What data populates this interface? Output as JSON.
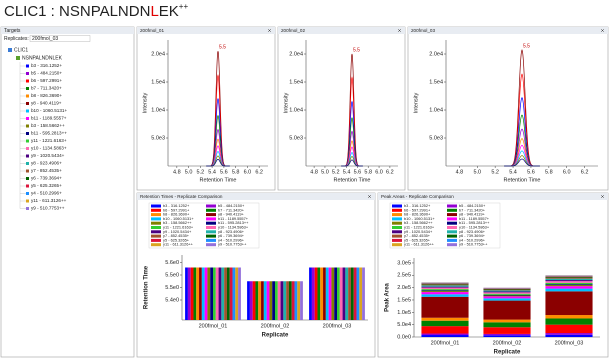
{
  "header": {
    "prefix": "CLIC1 : NSNPALNDN",
    "highlight": "L",
    "suffix": "EK",
    "charge": "++"
  },
  "targets": {
    "title": "Targets",
    "replicate_label": "Replicates:",
    "replicate": "200fmol_03",
    "protein": "CLIC1",
    "peptide": "NSNPALNDNLEK"
  },
  "chart_data": [
    {
      "type": "chromatogram",
      "title": "200fmol_01",
      "x_label": "Retention Time",
      "y_label": "Intensity",
      "apex_rt": 5.5,
      "xlim": [
        4.65,
        6.35
      ],
      "xticks": [
        4.8,
        {
          "value": 5,
          "label": "5.0"
        },
        5.2,
        5.4,
        5.6,
        5.8,
        {
          "value": 6,
          "label": "6.0"
        },
        6.2
      ],
      "ylim": [
        0,
        22500
      ],
      "yticks": [
        {
          "value": 5000,
          "label": "5.0e3"
        },
        {
          "value": 10000,
          "label": "1.0e4"
        },
        {
          "value": 15000,
          "label": "1.5e4"
        },
        {
          "value": 20000,
          "label": "2.0e4"
        }
      ],
      "heights": [
        20500,
        16200,
        12000,
        9000,
        6500,
        4800,
        3600,
        2600,
        1800,
        1200
      ],
      "colors": [
        "#8b0000",
        "#ff0000",
        "#0000ff",
        "#008000",
        "#9400d3",
        "#ff8c00",
        "#ff00ff",
        "#00bfff",
        "#808000",
        "#000080"
      ]
    },
    {
      "type": "chromatogram",
      "title": "200fmol_02",
      "x_label": "Retention Time",
      "y_label": "Intensity",
      "apex_rt": 5.5,
      "xlim": [
        4.65,
        6.35
      ],
      "xticks": [
        4.8,
        {
          "value": 5,
          "label": "5.0"
        },
        5.2,
        5.4,
        5.6,
        5.8,
        {
          "value": 6,
          "label": "6.0"
        },
        6.2
      ],
      "ylim": [
        0,
        22500
      ],
      "yticks": [
        {
          "value": 5000,
          "label": "5.0e3"
        },
        {
          "value": 10000,
          "label": "1.0e4"
        },
        {
          "value": 15000,
          "label": "1.5e4"
        },
        {
          "value": 20000,
          "label": "2.0e4"
        }
      ],
      "heights": [
        20000,
        15800,
        11500,
        8600,
        6200,
        4500,
        3400,
        2400,
        1700,
        1100
      ],
      "colors": [
        "#8b0000",
        "#ff0000",
        "#0000ff",
        "#008000",
        "#9400d3",
        "#ff8c00",
        "#ff00ff",
        "#00bfff",
        "#808000",
        "#000080"
      ]
    },
    {
      "type": "chromatogram",
      "title": "200fmol_03",
      "x_label": "Retention Time",
      "y_label": "Intensity",
      "apex_rt": 5.5,
      "xlim": [
        4.65,
        6.35
      ],
      "xticks": [
        4.8,
        {
          "value": 5,
          "label": "5.0"
        },
        5.2,
        5.4,
        5.6,
        5.8,
        {
          "value": 6,
          "label": "6.0"
        },
        6.2
      ],
      "ylim": [
        0,
        22500
      ],
      "yticks": [
        {
          "value": 5000,
          "label": "5.0e3"
        },
        {
          "value": 10000,
          "label": "1.0e4"
        },
        {
          "value": 15000,
          "label": "1.5e4"
        },
        {
          "value": 20000,
          "label": "2.0e4"
        }
      ],
      "heights": [
        20700,
        16400,
        12200,
        9100,
        6600,
        4900,
        3700,
        2700,
        1850,
        1250
      ],
      "colors": [
        "#8b0000",
        "#ff0000",
        "#0000ff",
        "#008000",
        "#9400d3",
        "#ff8c00",
        "#ff00ff",
        "#00bfff",
        "#808000",
        "#000080"
      ]
    },
    {
      "type": "grouped",
      "title": "Retention Times - Replicate Comparison",
      "x_label": "Replicate",
      "y_label": "Retention Time",
      "categories": [
        "200fmol_01",
        "200fmol_02",
        "200fmol_03"
      ],
      "ylim": [
        5.32,
        5.58
      ],
      "yticks": [
        {
          "value": 5.4,
          "label": "5.4e0"
        },
        {
          "value": 5.45,
          "label": "5.5e0"
        },
        {
          "value": 5.5,
          "label": "5.5e0"
        },
        {
          "value": 5.55,
          "label": "5.6e0"
        }
      ],
      "series": [
        {
          "name": "b3 - 316.1252+",
          "color": "#0000ff",
          "values": [
            5.53,
            5.475,
            5.53
          ]
        },
        {
          "name": "b5 - 484.2150+",
          "color": "#9400d3",
          "values": [
            5.53,
            5.475,
            5.53
          ]
        },
        {
          "name": "b6 - 597.2991+",
          "color": "#ff0000",
          "values": [
            5.53,
            5.475,
            5.53
          ]
        },
        {
          "name": "b7 - 711.3420+",
          "color": "#008000",
          "values": [
            5.53,
            5.475,
            5.53
          ]
        },
        {
          "name": "b8 - 826.3690+",
          "color": "#ff8c00",
          "values": [
            5.53,
            5.475,
            5.53
          ]
        },
        {
          "name": "y8 - 940.4119+",
          "color": "#8b0000",
          "values": [
            5.53,
            5.475,
            5.53
          ]
        },
        {
          "name": "b10 - 1060.5131+",
          "color": "#00bfff",
          "values": [
            5.53,
            5.475,
            5.53
          ]
        },
        {
          "name": "b11 - 1189.5557+",
          "color": "#ff00ff",
          "values": [
            5.53,
            5.475,
            5.53
          ]
        },
        {
          "name": "b3 - 158.5662++",
          "color": "#808000",
          "values": [
            5.53,
            5.475,
            5.53
          ]
        },
        {
          "name": "b11 - 595.2813++",
          "color": "#000080",
          "values": [
            5.53,
            5.475,
            5.53
          ]
        },
        {
          "name": "y11 - 1221.6163+",
          "color": "#32cd32",
          "values": [
            5.53,
            5.475,
            5.53
          ]
        },
        {
          "name": "y10 - 1134.5863+",
          "color": "#ff69b4",
          "values": [
            5.53,
            5.475,
            5.53
          ]
        },
        {
          "name": "y9 - 1020.5434+",
          "color": "#4b0082",
          "values": [
            5.53,
            5.475,
            5.53
          ]
        },
        {
          "name": "y8 - 923.4906+",
          "color": "#20b2aa",
          "values": [
            5.53,
            5.475,
            5.53
          ]
        },
        {
          "name": "y7 - 852.4535+",
          "color": "#a0522d",
          "values": [
            5.53,
            5.475,
            5.53
          ]
        },
        {
          "name": "y6 - 739.3694+",
          "color": "#006400",
          "values": [
            5.53,
            5.475,
            5.53
          ]
        },
        {
          "name": "y5 - 625.3265+",
          "color": "#dc143c",
          "values": [
            5.53,
            5.475,
            5.53
          ]
        },
        {
          "name": "y4 - 510.2996+",
          "color": "#1e90ff",
          "values": [
            5.53,
            5.475,
            5.53
          ]
        },
        {
          "name": "y11 - 611.3126++",
          "color": "#daa520",
          "values": [
            5.53,
            5.475,
            5.53
          ]
        },
        {
          "name": "y9 - 510.7753++",
          "color": "#9370db",
          "values": [
            5.53,
            5.475,
            5.53
          ]
        }
      ]
    },
    {
      "type": "stacked",
      "title": "Peak Areas - Replicate Comparison",
      "x_label": "Replicate",
      "y_label": "Peak Area",
      "categories": [
        "200fmol_01",
        "200fmol_02",
        "200fmol_03"
      ],
      "ylim": [
        0,
        320000
      ],
      "yticks": [
        {
          "value": 0,
          "label": "0.0e0"
        },
        {
          "value": 50000,
          "label": "5.0e4"
        },
        {
          "value": 100000,
          "label": "1.0e5"
        },
        {
          "value": 150000,
          "label": "1.5e5"
        },
        {
          "value": 200000,
          "label": "2.0e5"
        },
        {
          "value": 250000,
          "label": "2.5e5"
        },
        {
          "value": 300000,
          "label": "3.0e5"
        }
      ],
      "series": [
        {
          "name": "b3 - 316.1252+",
          "color": "#0000ff",
          "values": [
            8000,
            7000,
            9000
          ]
        },
        {
          "name": "b5 - 484.2150+",
          "color": "#9400d3",
          "values": [
            6000,
            5500,
            7000
          ]
        },
        {
          "name": "b6 - 597.2991+",
          "color": "#ff0000",
          "values": [
            30000,
            27000,
            34000
          ]
        },
        {
          "name": "b7 - 711.3420+",
          "color": "#008000",
          "values": [
            22000,
            20000,
            25000
          ]
        },
        {
          "name": "b8 - 826.3690+",
          "color": "#ff8c00",
          "values": [
            12000,
            11000,
            14000
          ]
        },
        {
          "name": "y8 - 940.4119+",
          "color": "#8b0000",
          "values": [
            85000,
            77000,
            96000
          ]
        },
        {
          "name": "b10 - 1060.5131+",
          "color": "#00bfff",
          "values": [
            10000,
            9000,
            11000
          ]
        },
        {
          "name": "b11 - 1189.5557+",
          "color": "#ff00ff",
          "values": [
            9000,
            8000,
            10000
          ]
        },
        {
          "name": "b3 - 158.5662++",
          "color": "#808000",
          "values": [
            4000,
            3600,
            4500
          ]
        },
        {
          "name": "b11 - 595.2813++",
          "color": "#000080",
          "values": [
            3000,
            2700,
            3400
          ]
        },
        {
          "name": "y11 - 1221.6163+",
          "color": "#32cd32",
          "values": [
            5000,
            4500,
            5600
          ]
        },
        {
          "name": "y10 - 1134.5863+",
          "color": "#ff69b4",
          "values": [
            6000,
            5400,
            6700
          ]
        },
        {
          "name": "y9 - 1020.5434+",
          "color": "#4b0082",
          "values": [
            4000,
            3600,
            4500
          ]
        },
        {
          "name": "y8 - 923.4906+",
          "color": "#20b2aa",
          "values": [
            5000,
            4500,
            5600
          ]
        },
        {
          "name": "y7 - 852.4535+",
          "color": "#a0522d",
          "values": [
            4000,
            3600,
            4500
          ]
        },
        {
          "name": "y6 - 739.3694+",
          "color": "#006400",
          "values": [
            3000,
            2700,
            3400
          ]
        },
        {
          "name": "y5 - 625.3265+",
          "color": "#dc143c",
          "values": [
            2000,
            1800,
            2200
          ]
        },
        {
          "name": "y4 - 510.2996+",
          "color": "#1e90ff",
          "values": [
            1500,
            1300,
            1700
          ]
        },
        {
          "name": "y11 - 611.3126++",
          "color": "#daa520",
          "values": [
            1000,
            900,
            1100
          ]
        },
        {
          "name": "y9 - 510.7753++",
          "color": "#9370db",
          "values": [
            1000,
            900,
            1100
          ]
        }
      ]
    }
  ]
}
